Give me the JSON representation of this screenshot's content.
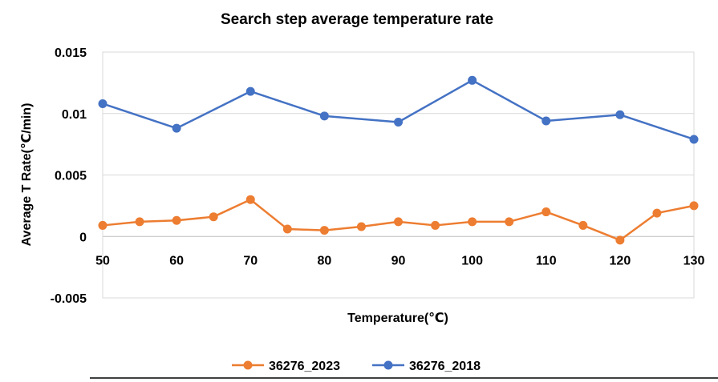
{
  "chart_data": {
    "type": "line",
    "title": "Search step average temperature rate",
    "xlabel": "Temperature(℃)",
    "ylabel": "Average T Rate(℃/min)",
    "xlim": [
      50,
      130
    ],
    "ylim": [
      -0.005,
      0.015
    ],
    "x_ticks": [
      50,
      60,
      70,
      80,
      90,
      100,
      110,
      120,
      130
    ],
    "x_tick_labels": [
      "50",
      "60",
      "70",
      "80",
      "90",
      "100",
      "110",
      "120",
      "130"
    ],
    "y_ticks": [
      -0.005,
      0,
      0.005,
      0.01,
      0.015
    ],
    "y_tick_labels": [
      "-0.005",
      "0",
      "0.005",
      "0.01",
      "0.015"
    ],
    "legend_position": "bottom",
    "series": [
      {
        "name": "36276_2023",
        "color": "#ED7D31",
        "x": [
          50,
          55,
          60,
          65,
          70,
          75,
          80,
          85,
          90,
          95,
          100,
          105,
          110,
          115,
          120,
          125,
          130
        ],
        "values": [
          0.0009,
          0.0012,
          0.0013,
          0.0016,
          0.003,
          0.0006,
          0.0005,
          0.0008,
          0.0012,
          0.0009,
          0.0012,
          0.0012,
          0.002,
          0.0009,
          -0.0003,
          0.0019,
          0.0025
        ]
      },
      {
        "name": "36276_2018",
        "color": "#4472C4",
        "x": [
          50,
          60,
          70,
          80,
          90,
          100,
          110,
          120,
          130
        ],
        "values": [
          0.0108,
          0.0088,
          0.0118,
          0.0098,
          0.0093,
          0.0127,
          0.0094,
          0.0099,
          0.0079
        ]
      }
    ]
  }
}
